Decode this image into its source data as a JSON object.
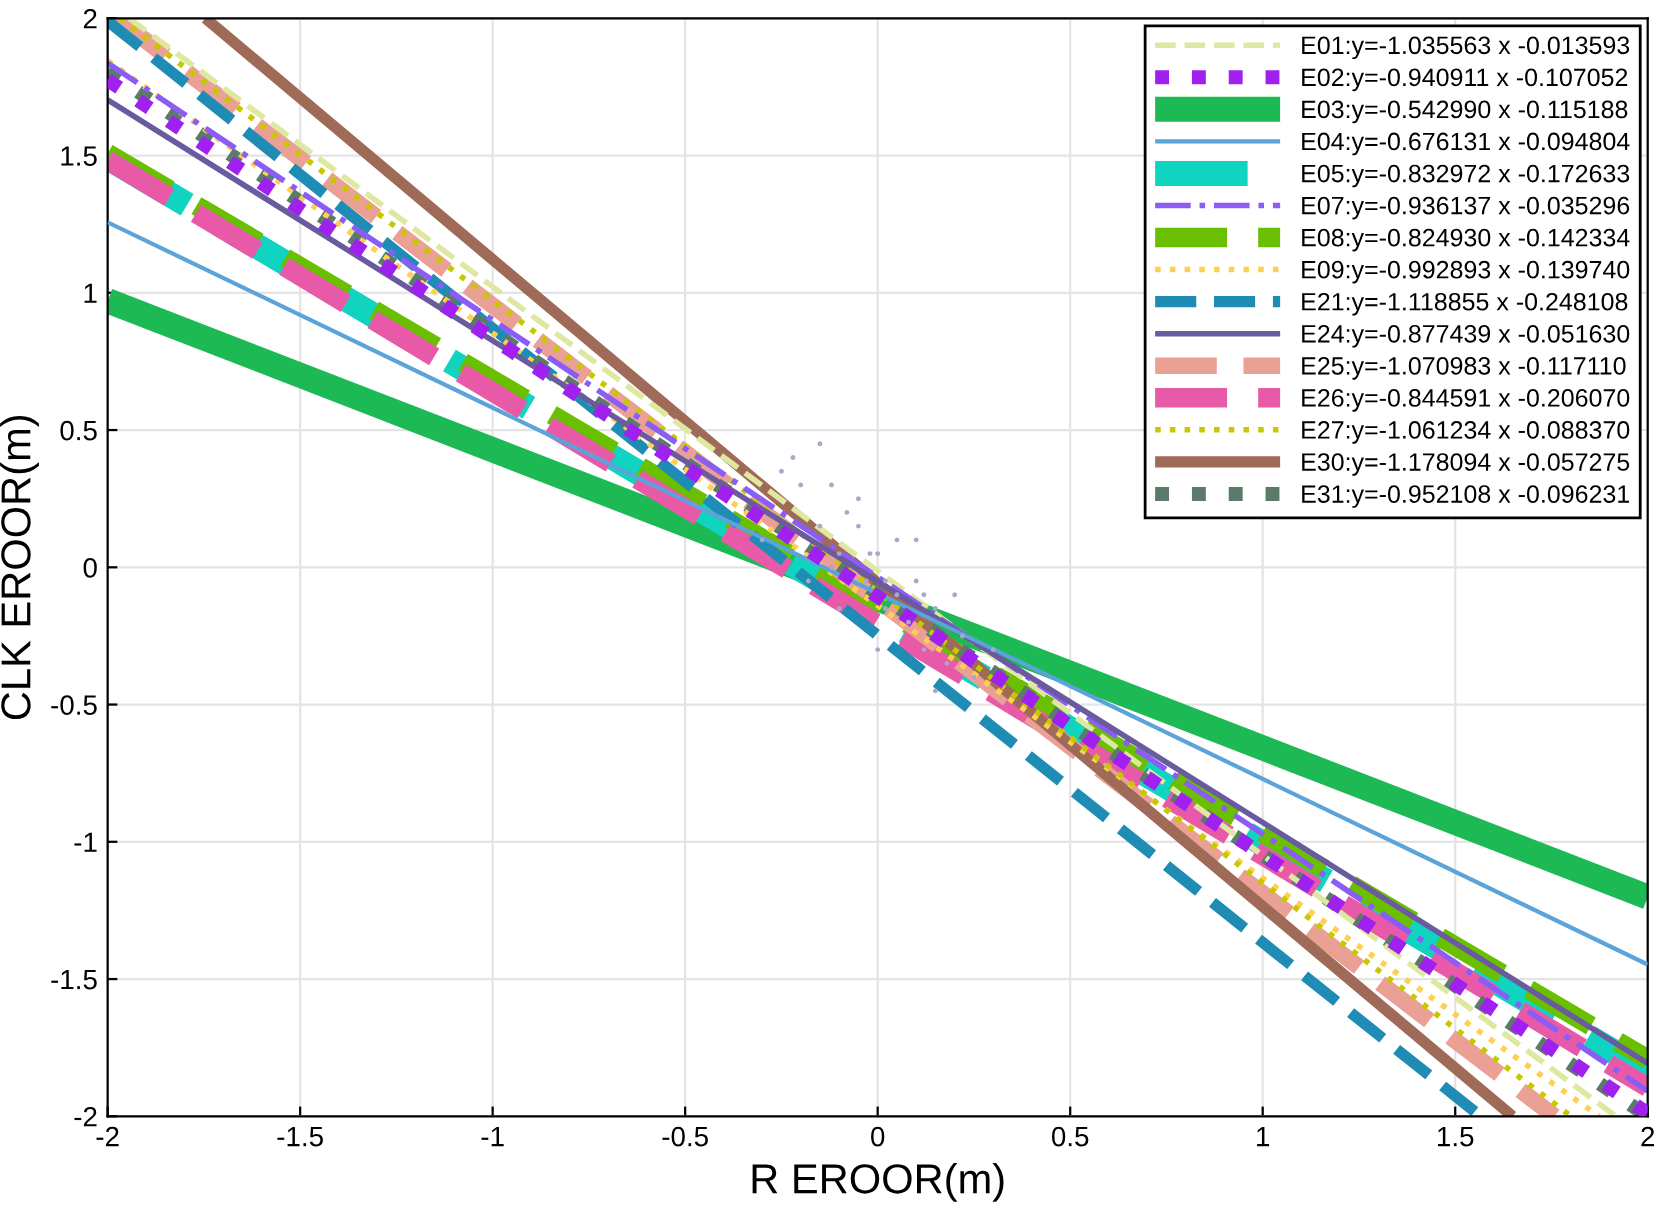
{
  "chart_data": {
    "type": "line",
    "xlabel": "R EROOR(m)",
    "ylabel": "CLK EROOR(m)",
    "xlim": [
      -2,
      2
    ],
    "ylim": [
      -2,
      2
    ],
    "xticks": [
      -2,
      -1.5,
      -1,
      -0.5,
      0,
      0.5,
      1,
      1.5,
      2
    ],
    "yticks": [
      -2,
      -1.5,
      -1,
      -0.5,
      0,
      0.5,
      1,
      1.5,
      2
    ],
    "grid": true,
    "legend": "top right",
    "series": [
      {
        "type": "scatter",
        "color": "#a8a8c8",
        "marker": "circle",
        "x": [
          -0.3,
          -0.25,
          -0.2,
          -0.18,
          -0.15,
          -0.12,
          -0.1,
          -0.08,
          -0.05,
          -0.03,
          0,
          0.02,
          0.05,
          0.08,
          0.1,
          0.12,
          0.15,
          0.18,
          0.2,
          0.22,
          0.25,
          -0.22,
          -0.1,
          0,
          0.1,
          -0.05,
          0.05,
          0.15,
          -0.15,
          0.3,
          -0.12,
          0.02,
          0.12,
          -0.02
        ],
        "values": [
          0.1,
          0.35,
          0.3,
          -0.05,
          0.15,
          0.3,
          0.05,
          0.2,
          0.15,
          -0.05,
          0.05,
          -0.15,
          0.1,
          -0.2,
          -0.05,
          -0.3,
          -0.15,
          -0.35,
          -0.1,
          -0.25,
          -0.4,
          0.4,
          -0.15,
          -0.3,
          0.1,
          0.25,
          -0.1,
          -0.45,
          0.45,
          -0.3,
          0,
          -0.05,
          -0.1,
          0.05
        ]
      },
      {
        "name": "E01:y=-1.035563 x -0.013593",
        "color": "#dfe8a0",
        "line_style": "dashed",
        "x": [
          -1.944,
          1.918
        ],
        "values": [
          2,
          -2
        ]
      },
      {
        "name": "E02:y=-0.940911 x -0.107052",
        "color": "#a020f0",
        "line_style": "dotted",
        "x": [
          -2,
          2
        ],
        "values": [
          1.775,
          -1.989
        ]
      },
      {
        "name": "E03:y=-0.542990 x -0.115188",
        "color": "#1db954",
        "line_style": "solid",
        "x": [
          -2,
          2
        ],
        "values": [
          0.971,
          -1.201
        ]
      },
      {
        "name": "E04:y=-0.676131 x -0.094804",
        "color": "#5ba3d9",
        "line_style": "solid",
        "x": [
          -2,
          2
        ],
        "values": [
          1.257,
          -1.447
        ]
      },
      {
        "name": "E05:y=-0.832972 x -0.172633",
        "color": "#10d4c0",
        "line_style": "dashed",
        "x": [
          -2,
          2
        ],
        "values": [
          1.493,
          -1.839
        ]
      },
      {
        "name": "E07:y=-0.936137 x -0.035296",
        "color": "#8b5cf6",
        "line_style": "dashdot",
        "x": [
          -2,
          2
        ],
        "values": [
          1.837,
          -1.908
        ]
      },
      {
        "name": "E08:y=-0.824930 x -0.142334",
        "color": "#6abf00",
        "line_style": "dashed",
        "x": [
          -2,
          2
        ],
        "values": [
          1.508,
          -1.792
        ]
      },
      {
        "name": "E09:y=-0.992893 x -0.139740",
        "color": "#ffd050",
        "line_style": "dotted",
        "x": [
          -2,
          1.874
        ],
        "values": [
          1.846,
          -2
        ]
      },
      {
        "name": "E21:y=-1.118855 x -0.248108",
        "color": "#1e8cb4",
        "line_style": "dashed",
        "x": [
          -2,
          1.566
        ],
        "values": [
          1.99,
          -2
        ]
      },
      {
        "name": "E24:y=-0.877439 x -0.051630",
        "color": "#6a5aa0",
        "line_style": "solid",
        "x": [
          -2,
          2
        ],
        "values": [
          1.703,
          -1.807
        ]
      },
      {
        "name": "E25:y=-1.070983 x -0.117110",
        "color": "#eba096",
        "line_style": "dashed",
        "x": [
          -1.977,
          1.758
        ],
        "values": [
          2,
          -2
        ]
      },
      {
        "name": "E26:y=-0.844591 x -0.206070",
        "color": "#e85aa8",
        "line_style": "dashed",
        "x": [
          -2,
          2
        ],
        "values": [
          1.483,
          -1.895
        ]
      },
      {
        "name": "E27:y=-1.061234 x -0.088370",
        "color": "#c8c800",
        "line_style": "dotted",
        "x": [
          -1.968,
          1.801
        ],
        "values": [
          2,
          -2
        ]
      },
      {
        "name": "E30:y=-1.178094 x -0.057275",
        "color": "#a06a58",
        "line_style": "solid",
        "x": [
          -1.746,
          1.649
        ],
        "values": [
          2,
          -2
        ]
      },
      {
        "name": "E31:y=-0.952108 x -0.096231",
        "color": "#5a7a6a",
        "line_style": "dotted",
        "x": [
          -2,
          2
        ],
        "values": [
          1.808,
          -2
        ]
      }
    ]
  }
}
